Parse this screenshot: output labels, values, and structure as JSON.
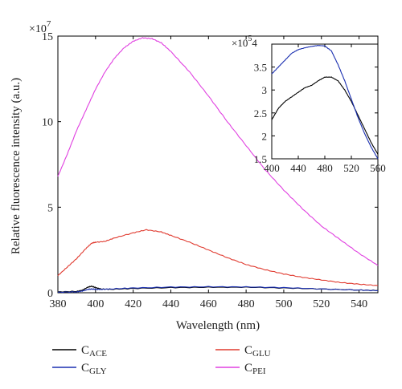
{
  "chart_data": [
    {
      "type": "line",
      "xlabel": "Wavelength (nm)",
      "ylabel": "Relative fluorescence intensity (a.u.)",
      "multiplier": "×10",
      "multiplier_exp": "7",
      "xlim": [
        380,
        550
      ],
      "ylim": [
        0,
        15
      ],
      "xticks": [
        380,
        400,
        420,
        440,
        460,
        480,
        500,
        520,
        540
      ],
      "yticks": [
        0,
        5,
        10,
        15
      ],
      "series": [
        {
          "name": "C",
          "name_sub": "ACE",
          "color": "#000000",
          "x": [
            380,
            390,
            393,
            396,
            398,
            400,
            403,
            408,
            420,
            440,
            460,
            480,
            500,
            520,
            540,
            550
          ],
          "y": [
            0.05,
            0.08,
            0.15,
            0.33,
            0.38,
            0.3,
            0.22,
            0.2,
            0.25,
            0.3,
            0.32,
            0.32,
            0.28,
            0.22,
            0.16,
            0.13
          ]
        },
        {
          "name": "C",
          "name_sub": "GLY",
          "color": "#1a2fb0",
          "x": [
            380,
            390,
            393,
            396,
            398,
            400,
            403,
            408,
            420,
            440,
            460,
            480,
            500,
            520,
            540,
            550
          ],
          "y": [
            0.03,
            0.05,
            0.1,
            0.2,
            0.22,
            0.2,
            0.2,
            0.22,
            0.28,
            0.33,
            0.35,
            0.34,
            0.3,
            0.22,
            0.16,
            0.12
          ]
        },
        {
          "name": "C",
          "name_sub": "GLU",
          "color": "#e03a2f",
          "x": [
            380,
            385,
            390,
            395,
            398,
            400,
            405,
            410,
            420,
            427,
            435,
            440,
            450,
            460,
            470,
            480,
            490,
            500,
            510,
            520,
            530,
            540,
            550
          ],
          "y": [
            1.0,
            1.5,
            2.0,
            2.6,
            2.9,
            2.95,
            3.0,
            3.2,
            3.5,
            3.68,
            3.55,
            3.35,
            2.95,
            2.5,
            2.05,
            1.65,
            1.35,
            1.1,
            0.9,
            0.75,
            0.6,
            0.5,
            0.42
          ]
        },
        {
          "name": "C",
          "name_sub": "PEI",
          "color": "#e040e0",
          "x": [
            380,
            385,
            390,
            395,
            400,
            405,
            410,
            415,
            420,
            425,
            430,
            435,
            440,
            450,
            460,
            470,
            480,
            490,
            500,
            510,
            520,
            530,
            540,
            550
          ],
          "y": [
            6.8,
            8.1,
            9.5,
            10.7,
            11.9,
            12.9,
            13.7,
            14.3,
            14.7,
            14.9,
            14.85,
            14.6,
            14.1,
            12.9,
            11.5,
            10.0,
            8.6,
            7.2,
            6.0,
            4.9,
            3.9,
            3.1,
            2.3,
            1.6
          ]
        }
      ]
    },
    {
      "type": "line",
      "multiplier": "×10",
      "multiplier_exp": "5",
      "multiplier_tail": "4",
      "xlim": [
        400,
        560
      ],
      "ylim": [
        1.5,
        4.0
      ],
      "xticks": [
        400,
        440,
        480,
        520,
        560
      ],
      "yticks": [
        1.5,
        2,
        2.5,
        3,
        3.5
      ],
      "series": [
        {
          "name": "C",
          "name_sub": "ACE",
          "color": "#000000",
          "x": [
            400,
            410,
            420,
            430,
            440,
            450,
            460,
            470,
            480,
            490,
            500,
            510,
            520,
            530,
            540,
            550,
            560
          ],
          "y": [
            2.35,
            2.6,
            2.75,
            2.85,
            2.95,
            3.05,
            3.1,
            3.2,
            3.28,
            3.28,
            3.2,
            3.0,
            2.75,
            2.45,
            2.15,
            1.85,
            1.6
          ]
        },
        {
          "name": "C",
          "name_sub": "GLY",
          "color": "#1a2fb0",
          "x": [
            400,
            410,
            420,
            430,
            440,
            450,
            460,
            470,
            480,
            490,
            500,
            510,
            520,
            530,
            540,
            550,
            560
          ],
          "y": [
            3.35,
            3.5,
            3.65,
            3.8,
            3.88,
            3.92,
            3.95,
            3.97,
            3.96,
            3.85,
            3.55,
            3.2,
            2.8,
            2.4,
            2.05,
            1.75,
            1.5
          ]
        }
      ]
    }
  ],
  "legend": {
    "items": [
      {
        "base": "C",
        "sub": "ACE",
        "color": "#000000"
      },
      {
        "base": "C",
        "sub": "GLU",
        "color": "#e03a2f"
      },
      {
        "base": "C",
        "sub": "GLY",
        "color": "#1a2fb0"
      },
      {
        "base": "C",
        "sub": "PEI",
        "color": "#e040e0"
      }
    ]
  }
}
